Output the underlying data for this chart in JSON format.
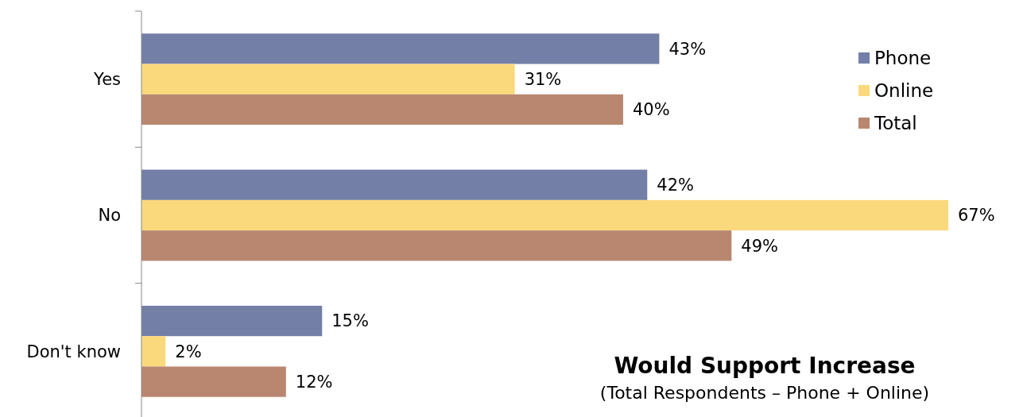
{
  "chart_data": {
    "type": "bar",
    "orientation": "horizontal",
    "title": "Would Support Increase",
    "subtitle": "(Total Respondents – Phone + Online)",
    "categories": [
      "Yes",
      "No",
      "Don't know"
    ],
    "series": [
      {
        "name": "Phone",
        "color": "#737fa6",
        "values": [
          43,
          42,
          15
        ],
        "value_labels": [
          "43%",
          "42%",
          "15%"
        ]
      },
      {
        "name": "Online",
        "color": "#fad97c",
        "values": [
          31,
          67,
          2
        ],
        "value_labels": [
          "31%",
          "67%",
          "2%"
        ]
      },
      {
        "name": "Total",
        "color": "#b98770",
        "values": [
          40,
          49,
          12
        ],
        "value_labels": [
          "40%",
          "49%",
          "12%"
        ]
      }
    ],
    "legend": "top right"
  }
}
